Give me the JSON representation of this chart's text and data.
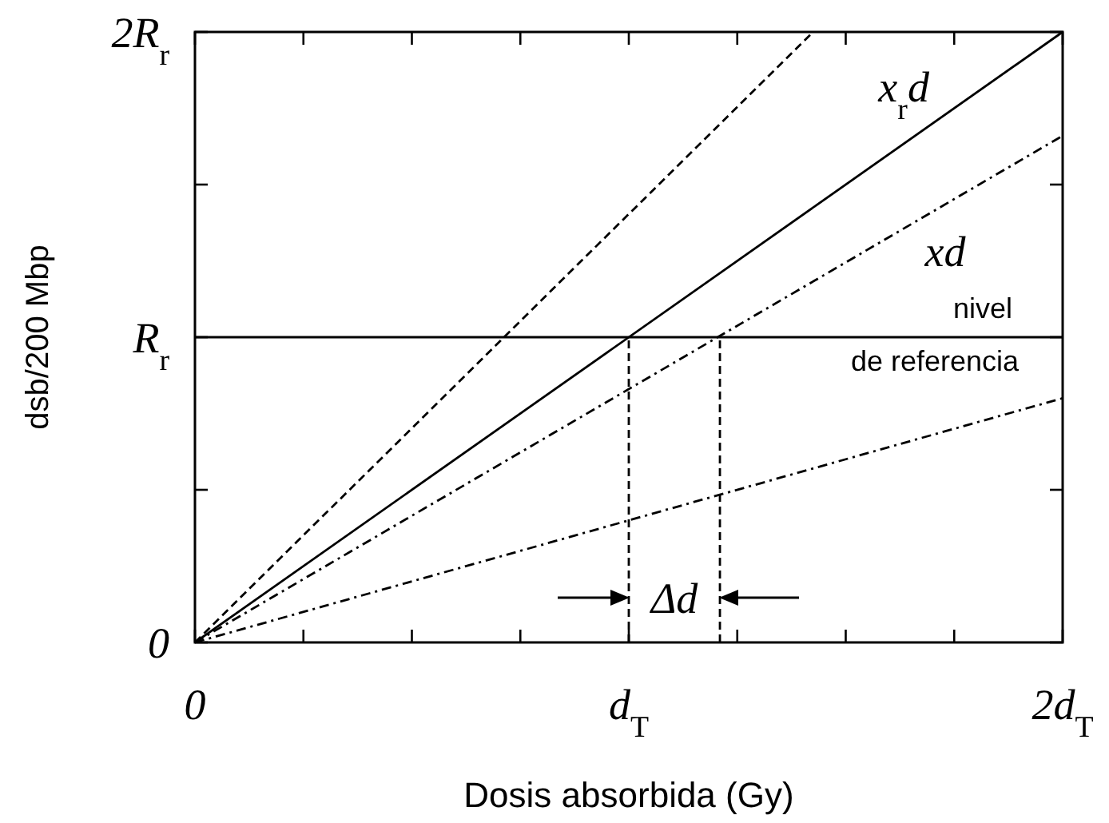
{
  "chart_data": {
    "type": "line",
    "xlabel": "Dosis absorbida (Gy)",
    "ylabel": "dsb/200 Mbp",
    "xlim": [
      0,
      2
    ],
    "ylim": [
      0,
      2
    ],
    "xticks": [
      0,
      {
        "value": 0.25,
        "label": null
      },
      {
        "value": 0.5,
        "label": null
      },
      {
        "value": 0.75,
        "label": null
      },
      {
        "value": 1,
        "label": "d$_{T}$"
      },
      {
        "value": 1.25,
        "label": null
      },
      {
        "value": 1.5,
        "label": null
      },
      {
        "value": 1.75,
        "label": null
      },
      {
        "value": 2,
        "label": "2d$_{T}$"
      }
    ],
    "yticks": [
      0,
      {
        "value": 0.5,
        "label": null
      },
      {
        "value": 1,
        "label": "R$_{r}$"
      },
      {
        "value": 1.5,
        "label": null
      },
      {
        "value": 2,
        "label": "2R$_{r}$"
      }
    ],
    "series": [
      {
        "name": "x$_{r}$d",
        "color": "#000000",
        "x": [
          0,
          2
        ],
        "values": [
          0,
          2
        ],
        "line_style": "solid"
      },
      {
        "color": "#000000",
        "x": [
          0,
          1.425
        ],
        "values": [
          0,
          2
        ],
        "line_style": "dashed"
      },
      {
        "name": "xd",
        "color": "#000000",
        "x": [
          0,
          2
        ],
        "values": [
          0,
          1.66
        ],
        "line_style": "dotted"
      },
      {
        "color": "#000000",
        "x": [
          0,
          2
        ],
        "values": [
          0,
          0.8
        ],
        "line_style": "dotted"
      },
      {
        "color": "#000000",
        "x": [
          1,
          1
        ],
        "values": [
          0,
          1
        ],
        "line_style": "dashed"
      },
      {
        "color": "#000000",
        "x": [
          1.21,
          1.21
        ],
        "values": [
          0,
          1
        ],
        "line_style": "dashed"
      }
    ],
    "ref_lines": [
      {
        "axis": "y",
        "value": 1,
        "label": "nivel de referencia",
        "color": "#000000",
        "line_style": "solid"
      }
    ],
    "annotations": [
      "Δd"
    ],
    "grid": false,
    "legend": false,
    "marker": "none"
  }
}
